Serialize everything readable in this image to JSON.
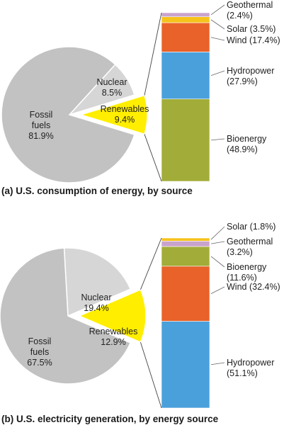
{
  "chart_data": [
    {
      "type": "pie",
      "caption": "(a) U.S. consumption of energy, by source",
      "slices": [
        {
          "name": "Fossil fuels",
          "label_lines": [
            "Fossil",
            "fuels",
            "81.9%"
          ],
          "value": 81.9,
          "color": "#c2c2c2",
          "exploded": false
        },
        {
          "name": "Nuclear",
          "label_lines": [
            "Nuclear",
            "8.5%"
          ],
          "value": 8.5,
          "color": "#d6d6d6",
          "exploded": false
        },
        {
          "name": "Renewables",
          "label_lines": [
            "Renewables",
            "9.4%"
          ],
          "value": 9.4,
          "color": "#ffee00",
          "exploded": true
        }
      ],
      "breakdown": {
        "type": "stacked-bar",
        "of": "Renewables",
        "segments": [
          {
            "name": "Bioenergy",
            "label_lines": [
              "Bioenergy",
              "(48.9%)"
            ],
            "value": 48.9,
            "color": "#a2ac38"
          },
          {
            "name": "Hydropower",
            "label_lines": [
              "Hydropower",
              "(27.9%)"
            ],
            "value": 27.9,
            "color": "#4aa0db"
          },
          {
            "name": "Wind",
            "label_lines": [
              "Wind (17.4%)"
            ],
            "value": 17.4,
            "color": "#e9622a"
          },
          {
            "name": "Solar",
            "label_lines": [
              "Solar (3.5%)"
            ],
            "value": 3.5,
            "color": "#f6c31b"
          },
          {
            "name": "Geothermal",
            "label_lines": [
              "Geothermal",
              "(2.4%)"
            ],
            "value": 2.4,
            "color": "#c9a3cc"
          }
        ]
      }
    },
    {
      "type": "pie",
      "caption": "(b) U.S. electricity generation, by energy source",
      "slices": [
        {
          "name": "Fossil fuels",
          "label_lines": [
            "Fossil",
            "fuels",
            "67.5%"
          ],
          "value": 67.5,
          "color": "#c2c2c2",
          "exploded": false
        },
        {
          "name": "Nuclear",
          "label_lines": [
            "Nuclear",
            "19.4%"
          ],
          "value": 19.4,
          "color": "#d6d6d6",
          "exploded": false
        },
        {
          "name": "Renewables",
          "label_lines": [
            "Renewables",
            "12.9%"
          ],
          "value": 12.9,
          "color": "#ffee00",
          "exploded": true
        }
      ],
      "breakdown": {
        "type": "stacked-bar",
        "of": "Renewables",
        "segments": [
          {
            "name": "Hydropower",
            "label_lines": [
              "Hydropower",
              "(51.1%)"
            ],
            "value": 51.1,
            "color": "#4aa0db"
          },
          {
            "name": "Wind",
            "label_lines": [
              "Wind (32.4%)"
            ],
            "value": 32.4,
            "color": "#e9622a"
          },
          {
            "name": "Bioenergy",
            "label_lines": [
              "Bioenergy",
              "(11.6%)"
            ],
            "value": 11.6,
            "color": "#a2ac38"
          },
          {
            "name": "Geothermal",
            "label_lines": [
              "Geothermal",
              "(3.2%)"
            ],
            "value": 3.2,
            "color": "#c9a3cc"
          },
          {
            "name": "Solar",
            "label_lines": [
              "Solar (1.8%)"
            ],
            "value": 1.8,
            "color": "#f6c31b"
          }
        ]
      }
    }
  ]
}
